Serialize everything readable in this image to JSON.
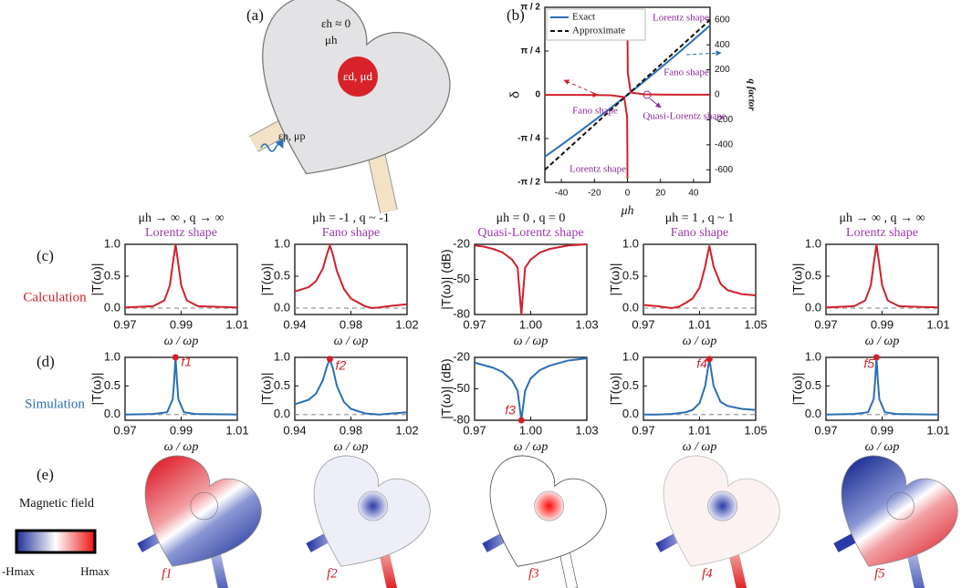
{
  "panel_a": {
    "label": "(a)",
    "eps_h": "εh ≈ 0",
    "mu_h": "μh",
    "dielectric": "εd, μd",
    "port": "εp, μp"
  },
  "panel_labels": {
    "c": "(c)",
    "d": "(d)",
    "e": "(e)",
    "calculation": "Calculation",
    "simulation": "Simulation"
  },
  "colorbar": {
    "title": "Magnetic field",
    "min_label": "-Hmax",
    "max_label": "Hmax"
  },
  "field_maps": [
    "f1",
    "f2",
    "f3",
    "f4",
    "f5"
  ],
  "column_headers": [
    {
      "condition": "μh → ∞ , q → ∞",
      "shape": "Lorentz shape"
    },
    {
      "condition": "μh = -1 , q ~ -1",
      "shape": "Fano shape"
    },
    {
      "condition": "μh = 0 , q = 0",
      "shape": "Quasi-Lorentz shape"
    },
    {
      "condition": "μh = 1 , q ~ 1",
      "shape": "Fano shape"
    },
    {
      "condition": "μh → ∞ , q → ∞",
      "shape": "Lorentz shape"
    }
  ],
  "chart_data": [
    {
      "type": "line",
      "label": "(b)",
      "xlabel": "μh",
      "ylabel": "δ",
      "y2label": "q factor",
      "xlim": [
        -50,
        50
      ],
      "xticks": [
        -40,
        -20,
        0,
        20,
        40
      ],
      "ylim": [
        -1.5708,
        1.5708
      ],
      "yticks": [
        {
          "value": -1.5708,
          "label": "-π / 2"
        },
        {
          "value": -0.7854,
          "label": "-π / 4"
        },
        0,
        {
          "value": 0.7854,
          "label": "π / 4"
        },
        {
          "value": 1.5708,
          "label": "π / 2"
        }
      ],
      "y2lim": [
        -700,
        700
      ],
      "y2ticks": [
        -600,
        -400,
        -200,
        0,
        200,
        400,
        600
      ],
      "x": [
        -50,
        -40,
        -30,
        -20,
        -10,
        -2,
        -0.2,
        -0.05,
        -0.02,
        -0.005,
        0,
        0.005,
        0.02,
        0.05,
        0.2,
        2,
        10,
        20,
        30,
        40,
        50
      ],
      "series": [
        {
          "name": "Exact",
          "color": "#2a6fb5",
          "axis": "y2",
          "line_style": "solid",
          "values": [
            -495,
            -401,
            -304,
            -205,
            -104,
            -21,
            -2.1,
            -0.5,
            -0.2,
            -0.05,
            0,
            0.05,
            0.2,
            0.5,
            2.1,
            21,
            106,
            215,
            326,
            439,
            555
          ]
        },
        {
          "name": "Approximate",
          "color": "#111111",
          "axis": "y2",
          "line_style": "dashed",
          "values": [
            -600,
            -480,
            -360,
            -240,
            -120,
            -24,
            -2.4,
            -0.6,
            -0.24,
            -0.06,
            0,
            0.06,
            0.24,
            0.6,
            2.4,
            24,
            120,
            240,
            360,
            480,
            600
          ]
        },
        {
          "color": "#d0202a",
          "line_style": "solid",
          "values": [
            -0.0017,
            -0.0021,
            -0.0028,
            -0.0042,
            -0.0083,
            -0.0416,
            -0.395,
            -1.03,
            -1.335,
            -1.51,
            null,
            1.51,
            1.335,
            1.03,
            0.395,
            0.0416,
            0.0083,
            0.0042,
            0.0028,
            0.0021,
            0.0017
          ]
        }
      ],
      "annotations": [
        "Lorentz shape",
        "Fano shape",
        "Fano shape",
        "Quasi-Lorentz shape",
        "Lorentz shape"
      ]
    },
    {
      "type": "line",
      "xlabel": "ω / ωp",
      "ylabel": "|T(ω)|",
      "xlim": [
        0.97,
        1.01
      ],
      "xticks": [
        0.97,
        0.99,
        1.01
      ],
      "ylim": [
        -0.1,
        1.0
      ],
      "yticks": [
        {
          "value": 0,
          "label": "0.0"
        },
        {
          "value": 0.5,
          "label": "0.5"
        },
        {
          "value": 1.0,
          "label": "1.0"
        }
      ],
      "baseline": 0,
      "x": [
        0.97,
        0.98,
        0.984,
        0.986,
        0.987,
        0.988,
        0.989,
        0.99,
        0.992,
        0.996,
        1.01
      ],
      "series": [
        {
          "color": "#d0202a",
          "values": [
            0.01,
            0.03,
            0.12,
            0.36,
            0.69,
            1.0,
            0.69,
            0.36,
            0.12,
            0.03,
            0.01
          ]
        }
      ]
    },
    {
      "type": "line",
      "xlabel": "ω / ωp",
      "ylabel": "|T(ω)|",
      "xlim": [
        0.94,
        1.02
      ],
      "xticks": [
        0.94,
        0.98,
        1.02
      ],
      "ylim": [
        -0.1,
        1.0
      ],
      "yticks": [
        {
          "value": 0,
          "label": "0.0"
        },
        {
          "value": 0.5,
          "label": "0.5"
        },
        {
          "value": 1.0,
          "label": "1.0"
        }
      ],
      "baseline": 0,
      "x": [
        0.94,
        0.95,
        0.955,
        0.96,
        0.963,
        0.965,
        0.967,
        0.97,
        0.975,
        0.98,
        0.99,
        0.995,
        1.0,
        1.01,
        1.02
      ],
      "series": [
        {
          "color": "#d0202a",
          "values": [
            0.26,
            0.33,
            0.42,
            0.62,
            0.85,
            0.98,
            0.85,
            0.58,
            0.3,
            0.15,
            0.03,
            0.0,
            0.01,
            0.04,
            0.06
          ]
        }
      ]
    },
    {
      "type": "line",
      "xlabel": "ω / ωp",
      "ylabel": "|T(ω)| (dB)",
      "xlim": [
        0.97,
        1.03
      ],
      "xticks": [
        0.97,
        {
          "value": 1.0,
          "label": "1.00"
        },
        1.03
      ],
      "ylim": [
        -80,
        -20
      ],
      "yticks": [
        -80,
        -50,
        -20
      ],
      "x": [
        0.97,
        0.975,
        0.98,
        0.985,
        0.99,
        0.993,
        0.995,
        0.997,
        1.0,
        1.005,
        1.01,
        1.02,
        1.03
      ],
      "series": [
        {
          "color": "#d0202a",
          "values": [
            -21,
            -22,
            -24,
            -27,
            -33,
            -40,
            -80,
            -40,
            -33,
            -27,
            -24,
            -21,
            -20
          ]
        }
      ]
    },
    {
      "type": "line",
      "xlabel": "ω / ωp",
      "ylabel": "|T(ω)|",
      "xlim": [
        0.97,
        1.05
      ],
      "xticks": [
        0.97,
        1.01,
        1.05
      ],
      "ylim": [
        -0.1,
        1.0
      ],
      "yticks": [
        {
          "value": 0,
          "label": "0.0"
        },
        {
          "value": 0.5,
          "label": "0.5"
        },
        {
          "value": 1.0,
          "label": "1.0"
        }
      ],
      "baseline": 0,
      "x": [
        0.97,
        0.98,
        0.99,
        0.995,
        1.0,
        1.005,
        1.01,
        1.014,
        1.017,
        1.02,
        1.025,
        1.03,
        1.04,
        1.05
      ],
      "series": [
        {
          "color": "#d0202a",
          "values": [
            0.05,
            0.03,
            0.0,
            0.02,
            0.08,
            0.15,
            0.32,
            0.65,
            0.98,
            0.65,
            0.38,
            0.28,
            0.22,
            0.2
          ]
        }
      ]
    },
    {
      "type": "line",
      "xlabel": "ω / ωp",
      "ylabel": "|T(ω)|",
      "xlim": [
        0.97,
        1.01
      ],
      "xticks": [
        0.97,
        0.99,
        1.01
      ],
      "ylim": [
        -0.1,
        1.0
      ],
      "yticks": [
        {
          "value": 0,
          "label": "0.0"
        },
        {
          "value": 0.5,
          "label": "0.5"
        },
        {
          "value": 1.0,
          "label": "1.0"
        }
      ],
      "baseline": 0,
      "x": [
        0.97,
        0.98,
        0.984,
        0.986,
        0.987,
        0.988,
        0.989,
        0.99,
        0.992,
        0.996,
        1.01
      ],
      "series": [
        {
          "color": "#d0202a",
          "values": [
            0.01,
            0.03,
            0.12,
            0.36,
            0.69,
            1.0,
            0.69,
            0.36,
            0.12,
            0.03,
            0.01
          ]
        }
      ]
    },
    {
      "type": "line",
      "xlabel": "ω / ωp",
      "ylabel": "|T(ω)|",
      "xlim": [
        0.97,
        1.01
      ],
      "xticks": [
        0.97,
        0.99,
        1.01
      ],
      "ylim": [
        -0.1,
        1.0
      ],
      "yticks": [
        {
          "value": 0,
          "label": "0.0"
        },
        {
          "value": 0.5,
          "label": "0.5"
        },
        {
          "value": 1.0,
          "label": "1.0"
        }
      ],
      "baseline": 0,
      "x": [
        0.97,
        0.98,
        0.985,
        0.987,
        0.9875,
        0.988,
        0.9885,
        0.989,
        0.991,
        0.995,
        1.01
      ],
      "series": [
        {
          "color": "#2a6fb5",
          "values": [
            0.0,
            0.01,
            0.04,
            0.27,
            0.59,
            1.0,
            0.59,
            0.27,
            0.04,
            0.01,
            0.0
          ]
        }
      ],
      "markers": [
        {
          "x": 0.988,
          "y": 1.0,
          "label": "f1",
          "color": "#d0202a"
        }
      ]
    },
    {
      "type": "line",
      "xlabel": "ω / ωp",
      "ylabel": "|T(ω)|",
      "xlim": [
        0.94,
        1.02
      ],
      "xticks": [
        0.94,
        0.98,
        1.02
      ],
      "ylim": [
        -0.1,
        1.0
      ],
      "yticks": [
        {
          "value": 0,
          "label": "0.0"
        },
        {
          "value": 0.5,
          "label": "0.5"
        },
        {
          "value": 1.0,
          "label": "1.0"
        }
      ],
      "baseline": 0,
      "x": [
        0.94,
        0.95,
        0.955,
        0.96,
        0.963,
        0.965,
        0.967,
        0.97,
        0.975,
        0.98,
        0.99,
        1.0,
        1.01,
        1.02
      ],
      "series": [
        {
          "color": "#2a6fb5",
          "values": [
            0.18,
            0.26,
            0.36,
            0.6,
            0.85,
            0.97,
            0.82,
            0.5,
            0.22,
            0.1,
            0.02,
            0.0,
            0.02,
            0.04
          ]
        }
      ],
      "markers": [
        {
          "x": 0.965,
          "y": 0.97,
          "label": "f2",
          "color": "#d0202a"
        }
      ]
    },
    {
      "type": "line",
      "xlabel": "ω / ωp",
      "ylabel": "|T(ω)| (dB)",
      "xlim": [
        0.97,
        1.03
      ],
      "xticks": [
        0.97,
        {
          "value": 1.0,
          "label": "1.00"
        },
        1.03
      ],
      "ylim": [
        -80,
        -20
      ],
      "yticks": [
        -80,
        -50,
        -20
      ],
      "x": [
        0.97,
        0.98,
        0.985,
        0.99,
        0.993,
        0.995,
        0.997,
        1.0,
        1.005,
        1.01,
        1.02,
        1.03
      ],
      "series": [
        {
          "color": "#2a6fb5",
          "values": [
            -25,
            -30,
            -34,
            -42,
            -52,
            -80,
            -52,
            -40,
            -32,
            -28,
            -23,
            -21
          ]
        }
      ],
      "markers": [
        {
          "x": 0.995,
          "y": -80,
          "label": "f3",
          "color": "#d0202a"
        }
      ]
    },
    {
      "type": "line",
      "xlabel": "ω / ωp",
      "ylabel": "|T(ω)|",
      "xlim": [
        0.97,
        1.05
      ],
      "xticks": [
        0.97,
        1.01,
        1.05
      ],
      "ylim": [
        -0.1,
        1.0
      ],
      "yticks": [
        {
          "value": 0,
          "label": "0.0"
        },
        {
          "value": 0.5,
          "label": "0.5"
        },
        {
          "value": 1.0,
          "label": "1.0"
        }
      ],
      "baseline": 0,
      "x": [
        0.97,
        0.98,
        0.99,
        1.0,
        1.005,
        1.01,
        1.014,
        1.017,
        1.02,
        1.025,
        1.03,
        1.04,
        1.05
      ],
      "series": [
        {
          "color": "#2a6fb5",
          "values": [
            0.0,
            0.0,
            0.01,
            0.04,
            0.08,
            0.2,
            0.5,
            0.97,
            0.5,
            0.22,
            0.15,
            0.1,
            0.08
          ]
        }
      ],
      "markers": [
        {
          "x": 1.017,
          "y": 0.97,
          "label": "f4",
          "color": "#d0202a"
        }
      ]
    },
    {
      "type": "line",
      "xlabel": "ω / ωp",
      "ylabel": "|T(ω)|",
      "xlim": [
        0.97,
        1.01
      ],
      "xticks": [
        0.97,
        0.99,
        1.01
      ],
      "ylim": [
        -0.1,
        1.0
      ],
      "yticks": [
        {
          "value": 0,
          "label": "0.0"
        },
        {
          "value": 0.5,
          "label": "0.5"
        },
        {
          "value": 1.0,
          "label": "1.0"
        }
      ],
      "baseline": 0,
      "x": [
        0.97,
        0.98,
        0.985,
        0.987,
        0.9875,
        0.988,
        0.9885,
        0.989,
        0.991,
        0.995,
        1.01
      ],
      "series": [
        {
          "color": "#2a6fb5",
          "values": [
            0.0,
            0.01,
            0.04,
            0.27,
            0.59,
            1.0,
            0.59,
            0.27,
            0.04,
            0.01,
            0.0
          ]
        }
      ],
      "markers": [
        {
          "x": 0.988,
          "y": 1.0,
          "label": "f5",
          "color": "#d0202a"
        }
      ]
    }
  ]
}
